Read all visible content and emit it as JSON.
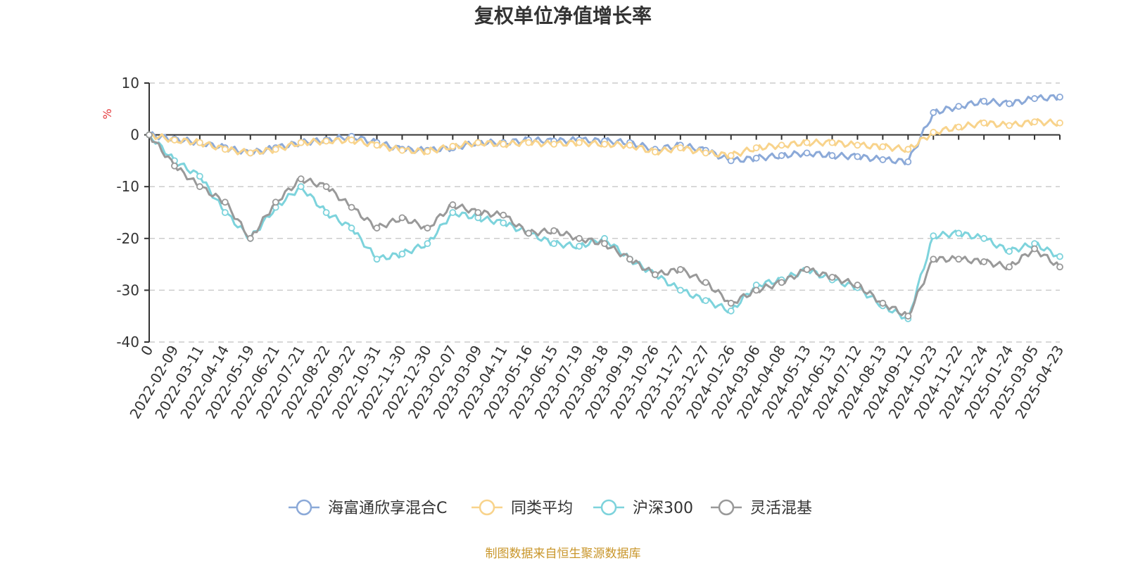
{
  "chart_data": {
    "type": "line",
    "title": "复权单位净值增长率",
    "unit": "%",
    "ylim": [
      -40,
      10
    ],
    "y_ticks": [
      "10",
      "0",
      "-10",
      "-20",
      "-30",
      "-40"
    ],
    "x_ticks": [
      "0",
      "2022-02-09",
      "2022-03-11",
      "2022-04-14",
      "2022-05-19",
      "2022-06-21",
      "2022-07-21",
      "2022-08-22",
      "2022-09-22",
      "2022-10-31",
      "2022-11-30",
      "2022-12-30",
      "2023-02-07",
      "2023-03-09",
      "2023-04-11",
      "2023-05-16",
      "2023-06-15",
      "2023-07-19",
      "2023-08-18",
      "2023-09-19",
      "2023-10-26",
      "2023-11-27",
      "2023-12-27",
      "2024-01-26",
      "2024-03-06",
      "2024-04-08",
      "2024-05-13",
      "2024-06-13",
      "2024-07-12",
      "2024-08-13",
      "2024-09-12",
      "2024-10-23",
      "2024-11-22",
      "2024-12-24",
      "2025-01-24",
      "2025-03-05",
      "2025-04-23"
    ],
    "grid": true,
    "legend_position": "bottom",
    "series": [
      {
        "name": "海富通欣享混合C",
        "color": "#8ba9d8",
        "values": [
          0,
          -0.8,
          -1.5,
          -2.5,
          -3.5,
          -2.5,
          -1.5,
          -1.0,
          -0.3,
          -1.5,
          -2.8,
          -3.0,
          -2.5,
          -1.5,
          -1.5,
          -1.0,
          -1.2,
          -1.0,
          -1.2,
          -1.5,
          -2.8,
          -2.0,
          -3.0,
          -5.0,
          -4.5,
          -4.0,
          -3.5,
          -4.0,
          -4.2,
          -4.8,
          -5.2,
          4.3,
          5.5,
          6.5,
          6.0,
          7.0,
          7.3
        ]
      },
      {
        "name": "同类平均",
        "color": "#f8d38b",
        "values": [
          0,
          -1.0,
          -1.5,
          -2.8,
          -3.5,
          -2.8,
          -1.5,
          -1.2,
          -1.0,
          -2.0,
          -3.0,
          -3.2,
          -2.2,
          -1.5,
          -1.8,
          -1.5,
          -1.8,
          -1.5,
          -1.8,
          -2.0,
          -3.3,
          -2.5,
          -3.5,
          -4.0,
          -2.5,
          -2.0,
          -1.5,
          -1.5,
          -2.0,
          -2.3,
          -2.8,
          0.5,
          1.5,
          2.3,
          1.8,
          2.5,
          2.3
        ]
      },
      {
        "name": "沪深300",
        "color": "#7dd3dc",
        "values": [
          0,
          -5.0,
          -8.0,
          -15.0,
          -20.0,
          -14.0,
          -10.0,
          -15.0,
          -18.0,
          -24.0,
          -23.0,
          -21.0,
          -15.0,
          -16.0,
          -17.0,
          -19.0,
          -21.0,
          -21.5,
          -20.0,
          -24.0,
          -27.0,
          -30.0,
          -32.0,
          -34.0,
          -29.0,
          -28.0,
          -26.0,
          -28.0,
          -29.5,
          -33.0,
          -35.5,
          -19.5,
          -19.0,
          -20.0,
          -22.5,
          -21.0,
          -23.5
        ]
      },
      {
        "name": "灵活混基",
        "color": "#999999",
        "values": [
          0,
          -6.0,
          -10.0,
          -13.0,
          -20.0,
          -13.0,
          -8.5,
          -10.0,
          -14.0,
          -18.0,
          -16.0,
          -18.0,
          -13.5,
          -15.0,
          -15.5,
          -19.0,
          -18.5,
          -20.0,
          -21.0,
          -24.0,
          -27.0,
          -26.0,
          -28.5,
          -32.5,
          -30.0,
          -28.5,
          -26.0,
          -27.5,
          -29.0,
          -32.5,
          -35.0,
          -24.0,
          -24.0,
          -24.5,
          -25.5,
          -22.0,
          -25.5
        ]
      }
    ]
  },
  "footer": "制图数据来自恒生聚源数据库"
}
